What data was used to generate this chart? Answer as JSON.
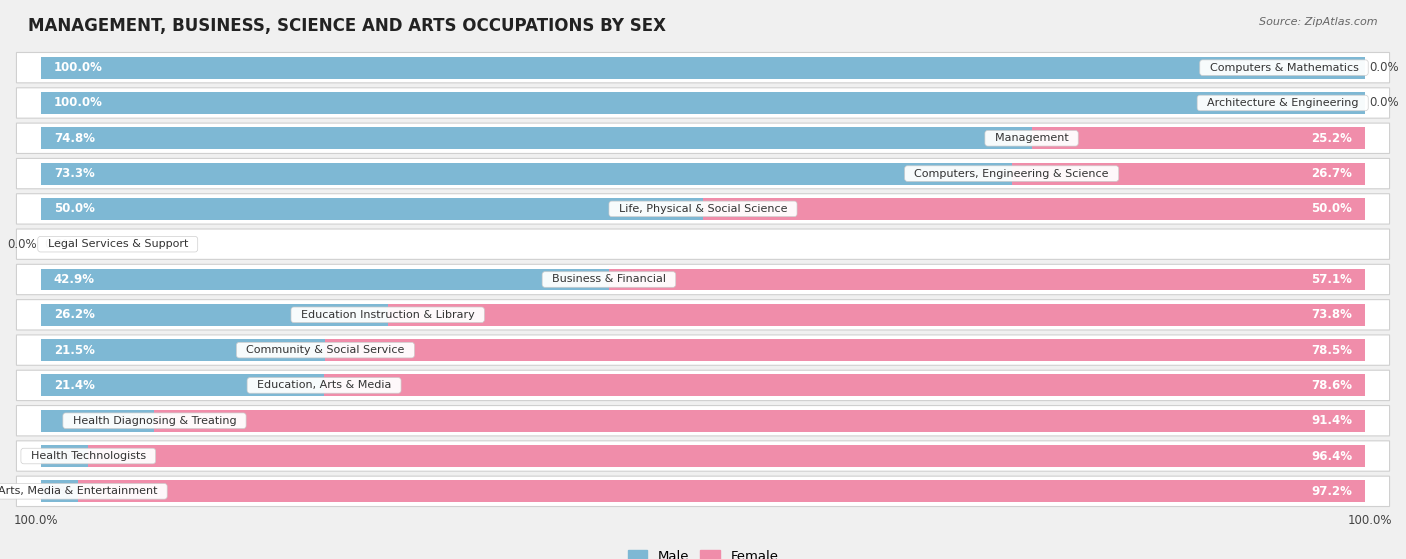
{
  "title": "MANAGEMENT, BUSINESS, SCIENCE AND ARTS OCCUPATIONS BY SEX",
  "source": "Source: ZipAtlas.com",
  "categories": [
    "Computers & Mathematics",
    "Architecture & Engineering",
    "Management",
    "Computers, Engineering & Science",
    "Life, Physical & Social Science",
    "Legal Services & Support",
    "Business & Financial",
    "Education Instruction & Library",
    "Community & Social Service",
    "Education, Arts & Media",
    "Health Diagnosing & Treating",
    "Health Technologists",
    "Arts, Media & Entertainment"
  ],
  "male": [
    100.0,
    100.0,
    74.8,
    73.3,
    50.0,
    0.0,
    42.9,
    26.2,
    21.5,
    21.4,
    8.6,
    3.6,
    2.8
  ],
  "female": [
    0.0,
    0.0,
    25.2,
    26.7,
    50.0,
    0.0,
    57.1,
    73.8,
    78.5,
    78.6,
    91.4,
    96.4,
    97.2
  ],
  "male_color": "#7eb8d4",
  "female_color": "#f08daa",
  "bg_color": "#f0f0f0",
  "row_bg_color": "#ffffff",
  "row_sep_color": "#d0d0d0",
  "title_fontsize": 12,
  "label_fontsize": 8.5,
  "cat_fontsize": 8,
  "bar_height": 0.62,
  "legend_male_color": "#7eb8d4",
  "legend_female_color": "#f08daa"
}
